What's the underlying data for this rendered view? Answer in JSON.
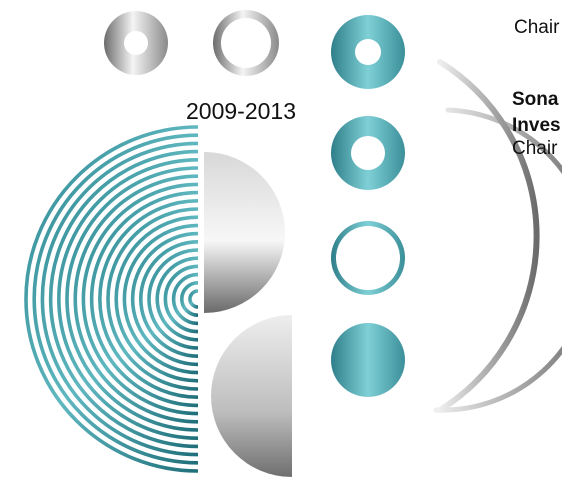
{
  "years": "2009-2013",
  "text_lines": {
    "chair_1": "Chair",
    "sona": "Sona",
    "inves": "Inves",
    "chair_2": "Chair"
  },
  "colors": {
    "teal": "#5fb7c0",
    "teal_dark": "#2f7f8a",
    "silver_light": "#f2f2f2",
    "silver_dark": "#5e5e5e"
  }
}
